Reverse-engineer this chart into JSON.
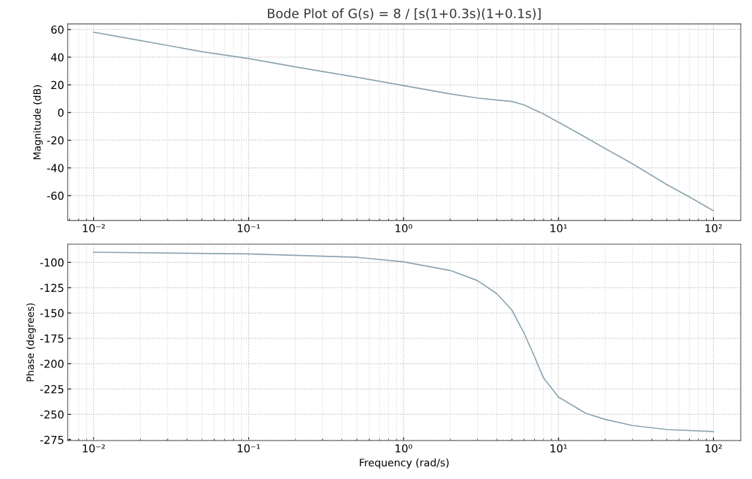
{
  "chart_data": [
    {
      "type": "line",
      "title": "Bode Plot of G(s) = 8 / [s(1+0.3s)(1+0.1s)]",
      "ylabel": "Magnitude (dB)",
      "log": "x",
      "grid": true,
      "x": [
        0.01,
        0.02,
        0.05,
        0.1,
        0.2,
        0.5,
        1,
        2,
        3,
        4,
        5,
        6,
        7,
        8,
        10,
        15,
        20,
        30,
        50,
        70,
        100
      ],
      "series": [
        {
          "color": "#8aa3b0",
          "values": [
            58,
            52,
            44,
            39,
            33,
            25.5,
            19.5,
            13.5,
            10.5,
            9,
            8,
            5.5,
            2,
            -1,
            -7,
            -18,
            -26,
            -37,
            -52,
            -61,
            -71
          ]
        }
      ],
      "xlim": [
        0.0068,
        150
      ],
      "ylim": [
        -78,
        64
      ],
      "xticks": [
        {
          "value": 0.01,
          "label": "10⁻²"
        },
        {
          "value": 0.1,
          "label": "10⁻¹"
        },
        {
          "value": 1,
          "label": "10⁰"
        },
        {
          "value": 10,
          "label": "10¹"
        },
        {
          "value": 100,
          "label": "10²"
        }
      ],
      "yticks": [
        -60,
        -40,
        -20,
        0,
        20,
        40,
        60
      ]
    },
    {
      "type": "line",
      "xlabel": "Frequency (rad/s)",
      "ylabel": "Phase (degrees)",
      "log": "x",
      "grid": true,
      "x": [
        0.01,
        0.1,
        0.5,
        1,
        2,
        3,
        4,
        5,
        6,
        7,
        8,
        10,
        15,
        20,
        30,
        50,
        100
      ],
      "series": [
        {
          "color": "#8aa3b0",
          "values": [
            -90,
            -91.7,
            -95,
            -99.5,
            -108,
            -118,
            -131,
            -147,
            -170,
            -193,
            -214,
            -233,
            -249,
            -255,
            -261,
            -265,
            -267
          ]
        }
      ],
      "xlim": [
        0.0068,
        150
      ],
      "ylim": [
        -276,
        -82
      ],
      "xticks": [
        {
          "value": 0.01,
          "label": "10⁻²"
        },
        {
          "value": 0.1,
          "label": "10⁻¹"
        },
        {
          "value": 1,
          "label": "10⁰"
        },
        {
          "value": 10,
          "label": "10¹"
        },
        {
          "value": 100,
          "label": "10²"
        }
      ],
      "yticks": [
        -275,
        -250,
        -225,
        -200,
        -175,
        -150,
        -125,
        -100
      ]
    }
  ]
}
